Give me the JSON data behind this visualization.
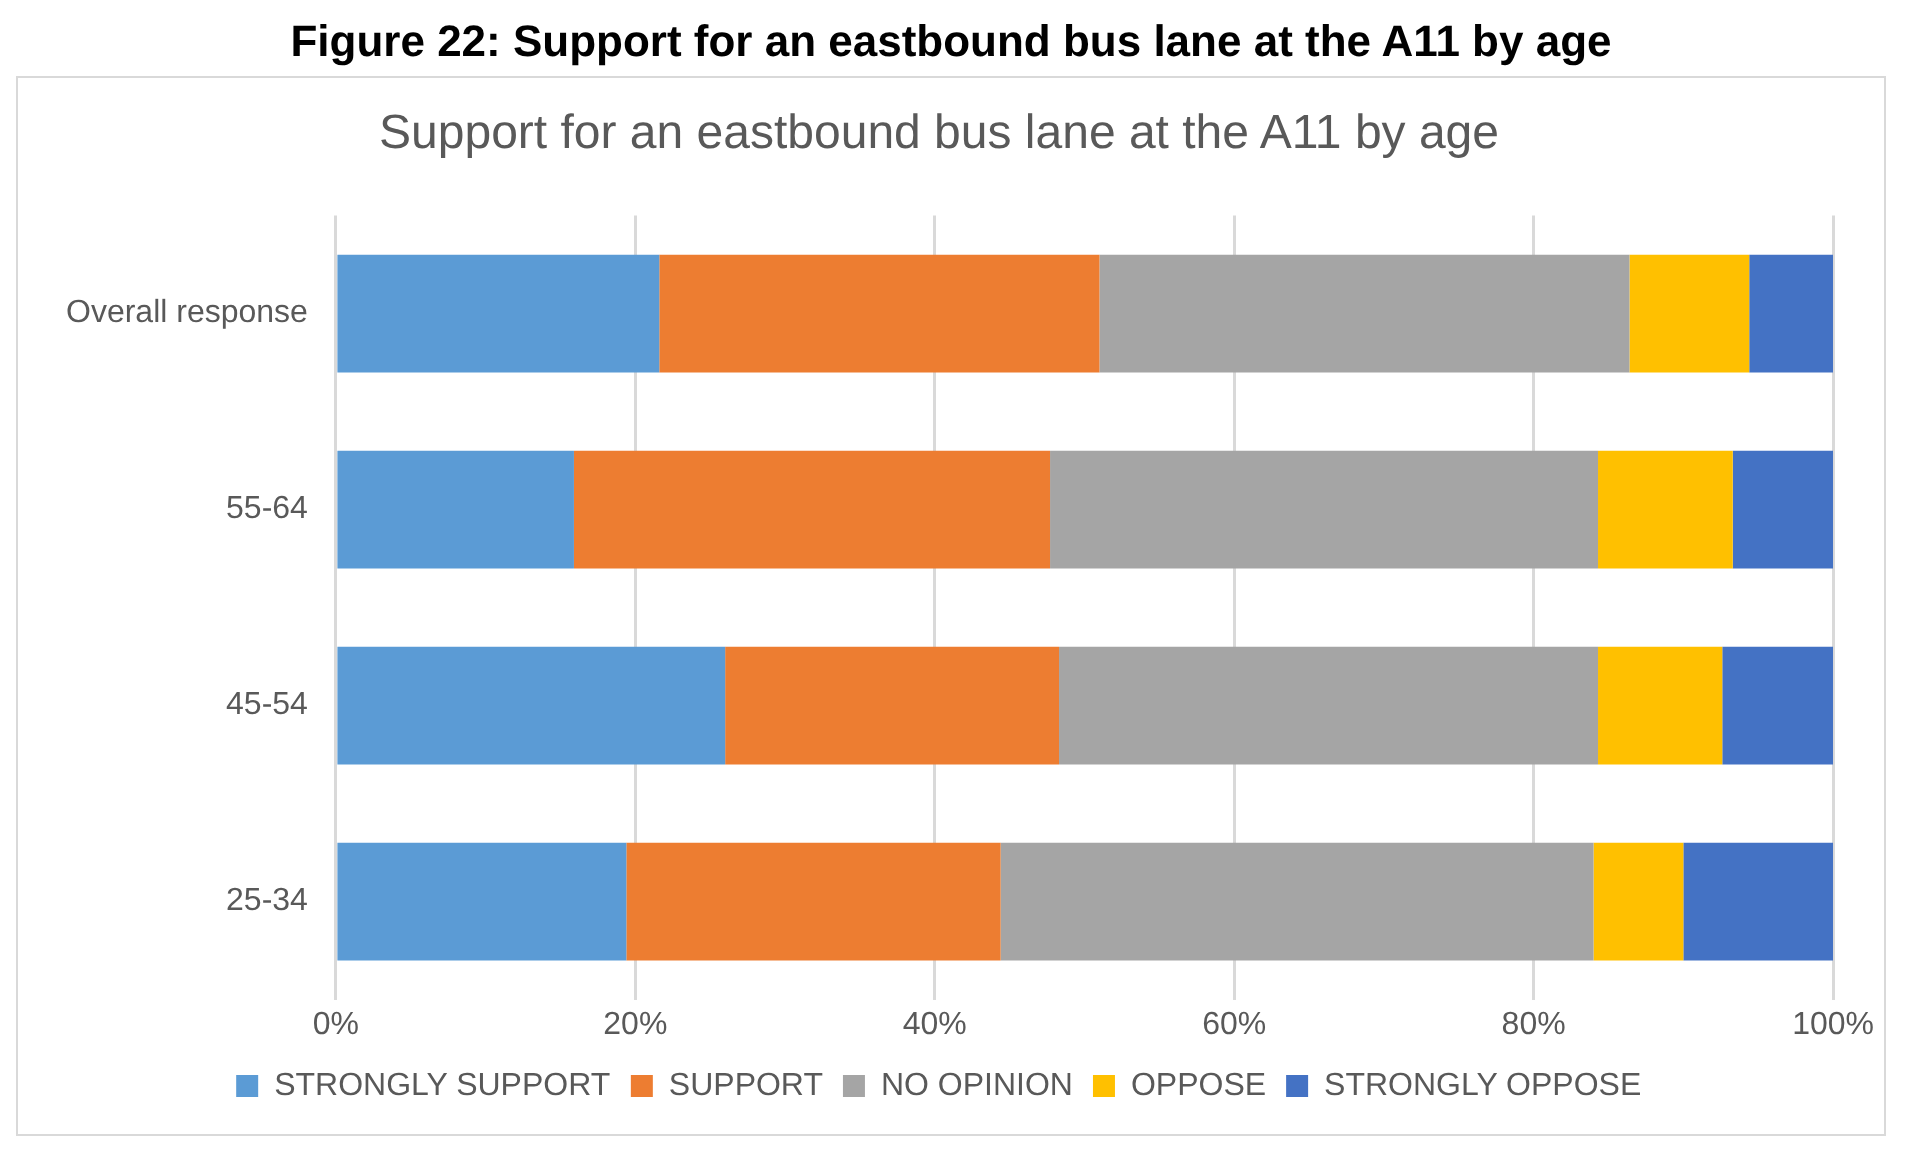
{
  "chart_data": {
    "type": "bar",
    "orientation": "horizontal",
    "stacked": true,
    "title": "Figure 22: Support for an eastbound bus lane at the A11 by age",
    "subtitle": "Support for an eastbound bus lane at the A11 by age",
    "categories": [
      "Overall response",
      "55-64",
      "45-54",
      "25-34"
    ],
    "series": [
      {
        "name": "STRONGLY SUPPORT",
        "color": "#5b9bd5",
        "values": [
          21.6,
          15.9,
          26.0,
          19.4
        ]
      },
      {
        "name": "SUPPORT",
        "color": "#ed7d31",
        "values": [
          29.4,
          31.8,
          22.3,
          25.0
        ]
      },
      {
        "name": "NO OPINION",
        "color": "#a5a5a5",
        "values": [
          35.4,
          36.6,
          36.0,
          39.6
        ]
      },
      {
        "name": "OPPOSE",
        "color": "#ffc000",
        "values": [
          8.0,
          9.0,
          8.3,
          6.0
        ]
      },
      {
        "name": "STRONGLY OPPOSE",
        "color": "#4472c4",
        "values": [
          5.6,
          6.7,
          7.4,
          10.0
        ]
      }
    ],
    "xlim": [
      0,
      100
    ],
    "xticks": [
      {
        "value": 0,
        "label": "0%"
      },
      {
        "value": 20,
        "label": "20%"
      },
      {
        "value": 40,
        "label": "40%"
      },
      {
        "value": 60,
        "label": "60%"
      },
      {
        "value": 80,
        "label": "80%"
      },
      {
        "value": 100,
        "label": "100%"
      }
    ],
    "grid": "x",
    "legend": "bottom"
  }
}
